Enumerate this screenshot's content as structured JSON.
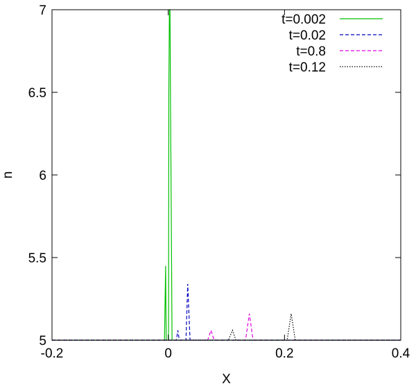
{
  "chart_data": {
    "type": "line",
    "xlabel": "X",
    "ylabel": "n",
    "xlim": [
      -0.2,
      0.4
    ],
    "ylim": [
      5,
      7
    ],
    "xticks": [
      -0.2,
      0,
      0.2,
      0.4
    ],
    "xtick_labels": [
      "-0.2",
      "0",
      "0.2",
      "0.4"
    ],
    "yticks": [
      5,
      5.5,
      6,
      6.5,
      7
    ],
    "ytick_labels": [
      "5",
      "5.5",
      "6",
      "6.5",
      "7"
    ],
    "grid": false,
    "legend_position": "top-right",
    "series": [
      {
        "name": "t=0.002",
        "color": "#00c000",
        "dash": "solid",
        "x": [
          -0.2,
          -0.0065,
          -0.0045,
          -0.0035,
          -0.002,
          0.0005,
          0.001,
          0.002,
          0.003,
          0.004,
          0.0055,
          0.0065,
          0.4
        ],
        "y": [
          5,
          5,
          5.45,
          5,
          5,
          5,
          6.5,
          7,
          7,
          6.4,
          5.6,
          5,
          5
        ]
      },
      {
        "name": "t=0.02",
        "color": "#0000c0",
        "dash": "dashed",
        "x": [
          -0.2,
          0.014,
          0.0165,
          0.019,
          0.0235,
          0.0305,
          0.0335,
          0.0375,
          0.4
        ],
        "y": [
          5,
          5,
          5.06,
          5,
          5,
          5,
          5.34,
          5,
          5
        ]
      },
      {
        "name": "t=0.8",
        "color": "#e000e0",
        "dash": "dashed",
        "x": [
          -0.2,
          0.068,
          0.0735,
          0.079,
          0.133,
          0.1395,
          0.146,
          0.4
        ],
        "y": [
          5,
          5,
          5.06,
          5,
          5,
          5.16,
          5,
          5
        ]
      },
      {
        "name": "t=0.12",
        "color": "#000000",
        "dash": "dotted",
        "x": [
          -0.2,
          0.1035,
          0.1105,
          0.1165,
          0.2045,
          0.2115,
          0.2185,
          0.4
        ],
        "y": [
          5,
          5,
          5.06,
          5,
          5,
          5.16,
          5,
          5
        ]
      }
    ]
  }
}
